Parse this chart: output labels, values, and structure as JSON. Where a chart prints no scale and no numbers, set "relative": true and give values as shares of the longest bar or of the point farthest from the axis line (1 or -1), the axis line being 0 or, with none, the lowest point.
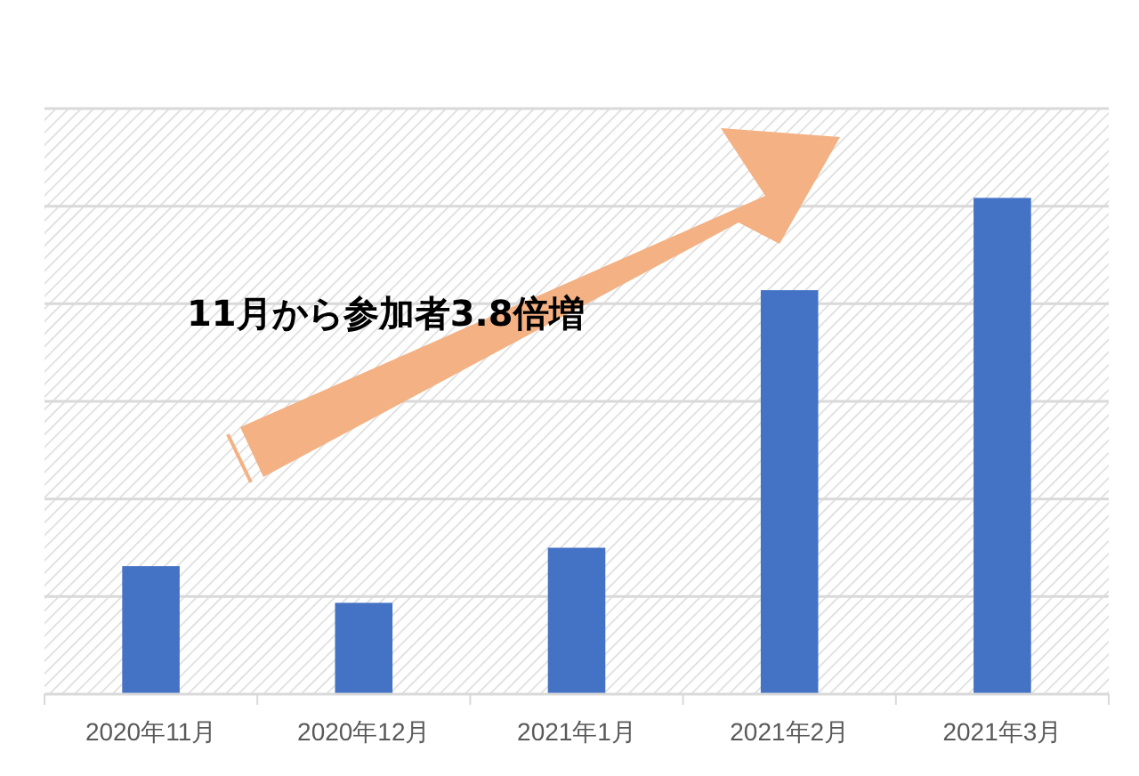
{
  "chart_data": {
    "type": "bar",
    "relative": true,
    "categories": [
      "2020年11月",
      "2020年12月",
      "2021年1月",
      "2021年2月",
      "2021年3月"
    ],
    "values": [
      0.258,
      0.184,
      0.295,
      0.814,
      1
    ],
    "color": "#4472c4",
    "grid": "y",
    "annotations": [
      "11月から参加者3.8倍増"
    ]
  }
}
